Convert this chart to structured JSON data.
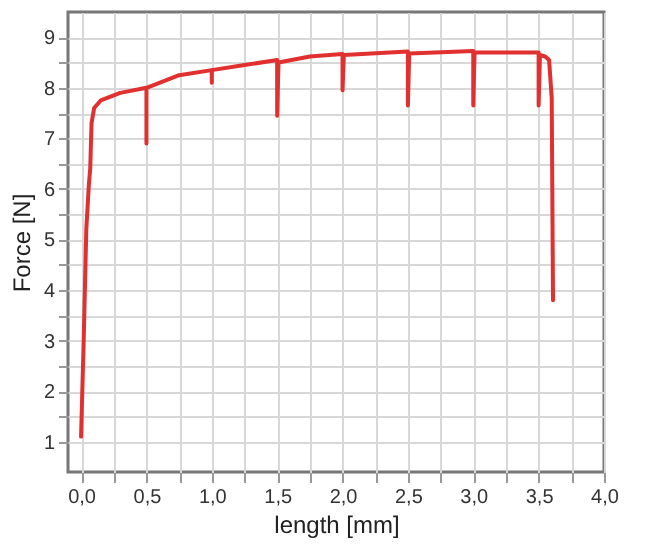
{
  "chart_data": {
    "type": "line",
    "xlabel": "length [mm]",
    "ylabel": "Force [N]",
    "x": [
      0.0,
      0.02,
      0.04,
      0.06,
      0.07,
      0.08,
      0.1,
      0.15,
      0.3,
      0.5,
      0.5,
      0.5,
      0.55,
      0.75,
      1.0,
      1.0,
      1.0,
      1.25,
      1.5,
      1.5,
      1.51,
      1.75,
      2.0,
      2.0,
      2.01,
      2.5,
      2.5,
      2.51,
      3.0,
      3.0,
      3.01,
      3.5,
      3.5,
      3.51,
      3.55,
      3.58,
      3.6,
      3.61
    ],
    "series": [
      {
        "color": "#e03030",
        "values": [
          1.1,
          3.0,
          5.2,
          6.1,
          6.4,
          7.3,
          7.6,
          7.75,
          7.9,
          8.0,
          6.9,
          8.0,
          8.05,
          8.25,
          8.35,
          8.1,
          8.35,
          8.45,
          8.55,
          7.45,
          8.5,
          8.62,
          8.67,
          7.95,
          8.65,
          8.72,
          7.65,
          8.68,
          8.73,
          7.65,
          8.7,
          8.7,
          7.65,
          8.65,
          8.62,
          8.55,
          7.8,
          3.8
        ]
      }
    ],
    "xlim": [
      -0.1,
      4.0
    ],
    "ylim": [
      0.4,
      9.5
    ],
    "xticks": [
      {
        "value": 0,
        "label": "0,0"
      },
      {
        "value": 0.25,
        "label": null
      },
      {
        "value": 0.5,
        "label": "0,5"
      },
      {
        "value": 0.75,
        "label": null
      },
      {
        "value": 1,
        "label": "1,0"
      },
      {
        "value": 1.25,
        "label": null
      },
      {
        "value": 1.5,
        "label": "1,5"
      },
      {
        "value": 1.75,
        "label": null
      },
      {
        "value": 2,
        "label": "2,0"
      },
      {
        "value": 2.25,
        "label": null
      },
      {
        "value": 2.5,
        "label": "2,5"
      },
      {
        "value": 2.75,
        "label": null
      },
      {
        "value": 3,
        "label": "3,0"
      },
      {
        "value": 3.25,
        "label": null
      },
      {
        "value": 3.5,
        "label": "3,5"
      },
      {
        "value": 3.75,
        "label": null
      },
      {
        "value": 4,
        "label": "4,0"
      }
    ],
    "yticks": [
      1,
      {
        "value": 1.5,
        "label": null
      },
      2,
      {
        "value": 2.5,
        "label": null
      },
      3,
      {
        "value": 3.5,
        "label": null
      },
      4,
      {
        "value": 4.5,
        "label": null
      },
      5,
      {
        "value": 5.5,
        "label": null
      },
      6,
      {
        "value": 6.5,
        "label": null
      },
      7,
      {
        "value": 7.5,
        "label": null
      },
      8,
      {
        "value": 8.5,
        "label": null
      },
      9
    ],
    "grid": true,
    "marker": "none",
    "line_style": "solid"
  }
}
